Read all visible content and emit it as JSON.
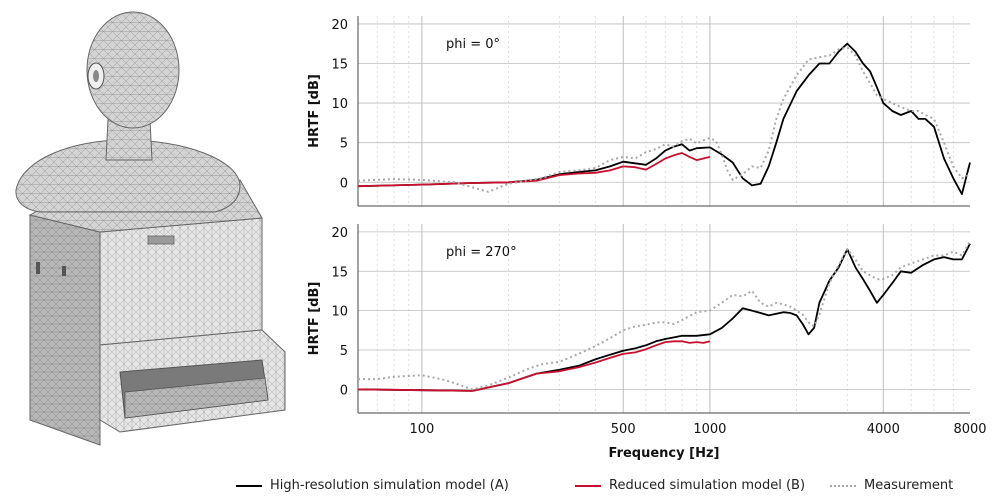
{
  "figure": {
    "model_image": "hats-mesh-model"
  },
  "colors": {
    "high_res": "#000000",
    "reduced": "#c8102e",
    "measurement": "#a8a8a8",
    "grid_major": "#bdbdbd",
    "grid_minor": "#d6d6d6"
  },
  "shared_x": {
    "label": "Frequency [Hz]",
    "scale": "log",
    "xlim": [
      60,
      8000
    ],
    "tick_values": [
      100,
      500,
      1000,
      4000,
      8000
    ],
    "tick_labels": [
      "100",
      "500",
      "1000",
      "4000",
      "8000"
    ]
  },
  "legend": {
    "placement": "bottom",
    "items": [
      {
        "label": "High-resolution simulation model (A)",
        "style": "solid",
        "color": "#000000"
      },
      {
        "label": "Reduced simulation model (B)",
        "style": "solid",
        "color": "#c8102e"
      },
      {
        "label": "Measurement",
        "style": "dotted",
        "color": "#a8a8a8"
      }
    ]
  },
  "chart_data": [
    {
      "type": "line",
      "annotation": "phi = 0°",
      "xlabel": "",
      "ylabel": "HRTF [dB]",
      "ylim": [
        -3,
        21
      ],
      "y_ticks": [
        0,
        5,
        10,
        15,
        20
      ],
      "y_tick_labels": [
        "0",
        "5",
        "10",
        "15",
        "20"
      ],
      "x_scale": "log",
      "grid": true,
      "series": [
        {
          "name": "High-resolution simulation model (A)",
          "style": "solid",
          "x": [
            60,
            100,
            150,
            200,
            250,
            300,
            350,
            400,
            450,
            500,
            550,
            600,
            650,
            700,
            750,
            800,
            850,
            900,
            1000,
            1100,
            1200,
            1300,
            1400,
            1500,
            1600,
            1700,
            1800,
            2000,
            2200,
            2400,
            2600,
            2800,
            3000,
            3200,
            3400,
            3600,
            3800,
            4000,
            4300,
            4600,
            5000,
            5300,
            5600,
            6000,
            6500,
            7000,
            7500,
            8000
          ],
          "y": [
            -0.5,
            -0.3,
            -0.1,
            0.0,
            0.3,
            1.0,
            1.3,
            1.5,
            2.0,
            2.6,
            2.4,
            2.2,
            3.0,
            4.0,
            4.5,
            4.8,
            4.0,
            4.3,
            4.4,
            3.5,
            2.5,
            0.5,
            -0.4,
            -0.2,
            2.0,
            5.0,
            8.0,
            11.5,
            13.5,
            15.0,
            15.0,
            16.5,
            17.5,
            16.5,
            15.0,
            14.0,
            12.0,
            10.0,
            9.0,
            8.5,
            9.0,
            8.0,
            8.0,
            7.0,
            3.0,
            0.5,
            -1.5,
            2.5
          ]
        },
        {
          "name": "Reduced simulation model (B)",
          "style": "solid",
          "x": [
            60,
            100,
            150,
            200,
            250,
            300,
            350,
            400,
            450,
            500,
            550,
            600,
            650,
            700,
            750,
            800,
            850,
            900,
            1000
          ],
          "y": [
            -0.5,
            -0.3,
            -0.1,
            0.0,
            0.2,
            0.9,
            1.1,
            1.2,
            1.5,
            2.0,
            1.9,
            1.6,
            2.3,
            3.0,
            3.4,
            3.7,
            3.2,
            2.8,
            3.2
          ]
        },
        {
          "name": "Measurement",
          "style": "dotted",
          "x": [
            60,
            80,
            100,
            130,
            170,
            190,
            200,
            230,
            260,
            300,
            350,
            400,
            450,
            500,
            550,
            600,
            650,
            700,
            750,
            800,
            850,
            900,
            950,
            1000,
            1050,
            1100,
            1150,
            1200,
            1300,
            1400,
            1500,
            1600,
            1700,
            1800,
            2000,
            2200,
            2400,
            2600,
            2800,
            3000,
            3200,
            3400,
            3600,
            3800,
            4000,
            4300,
            4600,
            5000,
            5300,
            5600,
            6000,
            6500,
            7000,
            7500,
            8000
          ],
          "y": [
            0.2,
            0.4,
            0.3,
            0.0,
            -1.2,
            -0.5,
            -0.2,
            0.2,
            0.5,
            1.3,
            1.5,
            1.8,
            2.8,
            3.2,
            3.0,
            3.8,
            4.2,
            4.8,
            4.5,
            5.2,
            5.5,
            4.9,
            5.3,
            5.6,
            5.2,
            3.5,
            1.5,
            0.3,
            1.0,
            2.0,
            1.8,
            4.0,
            8.0,
            10.5,
            13.5,
            15.5,
            15.8,
            16.0,
            16.8,
            17.0,
            16.0,
            14.0,
            12.5,
            11.0,
            10.5,
            10.0,
            9.5,
            9.0,
            9.0,
            8.5,
            8.0,
            5.0,
            2.0,
            0.5,
            1.0
          ]
        }
      ]
    },
    {
      "type": "line",
      "annotation": "phi = 270°",
      "xlabel": "Frequency [Hz]",
      "ylabel": "HRTF [dB]",
      "ylim": [
        -3,
        21
      ],
      "y_ticks": [
        0,
        5,
        10,
        15,
        20
      ],
      "y_tick_labels": [
        "0",
        "5",
        "10",
        "15",
        "20"
      ],
      "x_scale": "log",
      "grid": true,
      "series": [
        {
          "name": "High-resolution simulation model (A)",
          "style": "solid",
          "x": [
            60,
            100,
            150,
            200,
            250,
            300,
            350,
            400,
            450,
            500,
            550,
            600,
            650,
            700,
            750,
            800,
            900,
            1000,
            1100,
            1200,
            1300,
            1400,
            1500,
            1600,
            1700,
            1800,
            1900,
            2000,
            2100,
            2200,
            2300,
            2400,
            2600,
            2800,
            3000,
            3200,
            3400,
            3600,
            3800,
            4000,
            4300,
            4600,
            5000,
            5500,
            6000,
            6500,
            7000,
            7500,
            8000
          ],
          "y": [
            0.0,
            -0.1,
            -0.2,
            0.8,
            2.0,
            2.5,
            3.0,
            3.8,
            4.4,
            4.9,
            5.2,
            5.6,
            6.1,
            6.4,
            6.6,
            6.8,
            6.8,
            7.0,
            7.8,
            9.0,
            10.3,
            10.0,
            9.7,
            9.4,
            9.6,
            9.8,
            9.7,
            9.4,
            8.3,
            7.0,
            7.8,
            11.0,
            13.8,
            15.5,
            17.8,
            15.5,
            14.0,
            12.5,
            11.0,
            12.0,
            13.5,
            15.0,
            14.8,
            15.8,
            16.5,
            16.8,
            16.5,
            16.5,
            18.5
          ]
        },
        {
          "name": "Reduced simulation model (B)",
          "style": "solid",
          "x": [
            60,
            100,
            150,
            200,
            250,
            300,
            350,
            400,
            450,
            500,
            550,
            600,
            650,
            700,
            750,
            800,
            850,
            900,
            950,
            1000
          ],
          "y": [
            0.0,
            -0.1,
            -0.2,
            0.8,
            2.0,
            2.3,
            2.8,
            3.4,
            4.0,
            4.5,
            4.7,
            5.1,
            5.6,
            6.0,
            6.1,
            6.1,
            5.9,
            6.0,
            5.9,
            6.1
          ]
        },
        {
          "name": "Measurement",
          "style": "dotted",
          "x": [
            60,
            70,
            80,
            100,
            120,
            150,
            170,
            200,
            230,
            260,
            300,
            350,
            400,
            450,
            500,
            550,
            600,
            650,
            700,
            750,
            800,
            900,
            1000,
            1100,
            1200,
            1300,
            1400,
            1500,
            1600,
            1700,
            1800,
            1900,
            2000,
            2100,
            2200,
            2300,
            2400,
            2600,
            2800,
            3000,
            3200,
            3400,
            3600,
            3800,
            4000,
            4300,
            4600,
            5000,
            5500,
            6000,
            6500,
            7000,
            7500,
            8000
          ],
          "y": [
            1.3,
            1.3,
            1.6,
            1.8,
            1.2,
            0.0,
            0.5,
            1.5,
            2.5,
            3.2,
            3.5,
            4.5,
            5.5,
            6.5,
            7.5,
            8.0,
            8.2,
            8.5,
            8.5,
            8.3,
            8.8,
            9.8,
            10.0,
            11.0,
            12.0,
            11.8,
            12.5,
            11.0,
            10.5,
            11.0,
            10.8,
            10.5,
            10.0,
            9.5,
            8.5,
            8.0,
            9.5,
            13.5,
            15.8,
            17.8,
            16.5,
            15.0,
            14.5,
            14.0,
            14.0,
            14.5,
            15.5,
            16.0,
            16.5,
            17.0,
            17.0,
            17.5,
            17.0,
            18.8
          ]
        }
      ]
    }
  ]
}
